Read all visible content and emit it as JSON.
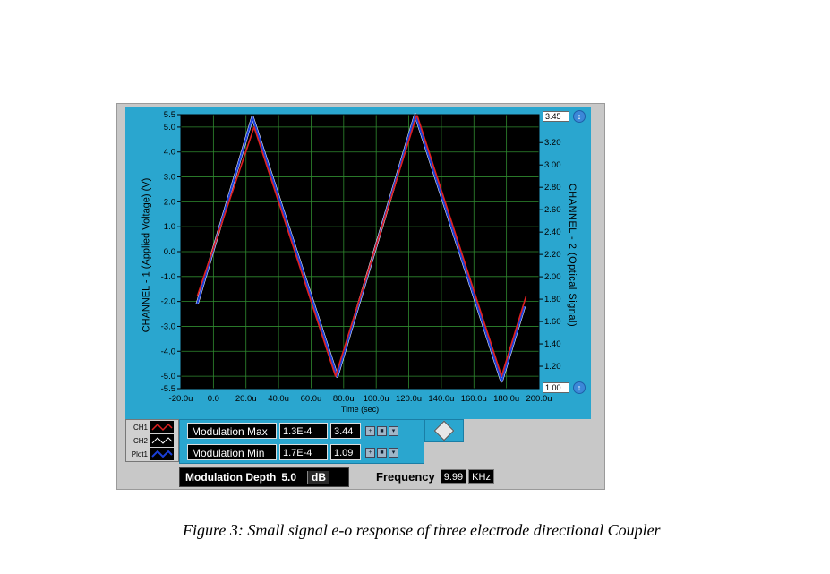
{
  "chart_data": {
    "type": "line",
    "xlabel": "Time (sec)",
    "ylabel": "CHANNEL - 1 (Applied Voltage) (V)",
    "y2label": "CHANNEL - 2 (Optical Signal)",
    "xlim": [
      -20,
      200
    ],
    "ylim": [
      -5.5,
      5.5
    ],
    "y2lim": [
      1.0,
      3.45
    ],
    "x_ticks": [
      -20,
      0,
      20,
      40,
      60,
      80,
      100,
      120,
      140,
      160,
      180,
      200
    ],
    "x_tick_labels": [
      "-20.0u",
      "0.0",
      "20.0u",
      "40.0u",
      "60.0u",
      "80.0u",
      "100.0u",
      "120.0u",
      "140.0u",
      "160.0u",
      "180.0u",
      "200.0u"
    ],
    "y_ticks": [
      5.5,
      5.0,
      4.0,
      3.0,
      2.0,
      1.0,
      0.0,
      -1.0,
      -2.0,
      -3.0,
      -4.0,
      -5.0,
      -5.5
    ],
    "y_tick_labels": [
      "5.5",
      "5.0",
      "4.0",
      "3.0",
      "2.0",
      "1.0",
      "0.0",
      "-1.0",
      "-2.0",
      "-3.0",
      "-4.0",
      "-5.0",
      "-5.5"
    ],
    "y2_ticks": [
      3.2,
      3.0,
      2.8,
      2.6,
      2.4,
      2.2,
      2.0,
      1.8,
      1.6,
      1.4,
      1.2
    ],
    "y2_tick_labels": [
      "3.20",
      "3.00",
      "2.80",
      "2.60",
      "2.40",
      "2.20",
      "2.00",
      "1.80",
      "1.60",
      "1.40",
      "1.20"
    ],
    "y2_max_label": "3.45",
    "y2_min_label": "1.00",
    "grid": true,
    "series": [
      {
        "name": "CH1",
        "color": "#e02020",
        "x": [
          -10,
          25,
          75,
          125,
          177,
          192
        ],
        "y": [
          -1.8,
          5.0,
          -5.0,
          5.5,
          -5.0,
          -1.8
        ]
      },
      {
        "name": "CH2",
        "color": "#ffffff",
        "x": [
          -10,
          24,
          76,
          124,
          177,
          191
        ],
        "y": [
          -2.1,
          5.4,
          -5.0,
          5.5,
          -5.2,
          -2.2
        ]
      },
      {
        "name": "Plot1",
        "color": "#1a3fd8",
        "x": [
          -10,
          24,
          76,
          124,
          177,
          191
        ],
        "y": [
          -2.1,
          5.4,
          -5.0,
          5.5,
          -5.2,
          -2.2
        ]
      }
    ]
  },
  "legend": {
    "items": [
      {
        "label": "CH1",
        "color": "#e02020"
      },
      {
        "label": "CH2",
        "color": "#ffffff"
      },
      {
        "label": "Plot1",
        "color": "#1a3fd8"
      }
    ]
  },
  "cursors": {
    "max_label": "Modulation Max",
    "max_x": "1.3E-4",
    "max_y": "3.44",
    "min_label": "Modulation Min",
    "min_x": "1.7E-4",
    "min_y": "1.09"
  },
  "depth": {
    "label": "Modulation Depth",
    "value": "5.0",
    "unit": "dB"
  },
  "frequency": {
    "label": "Frequency",
    "value": "9.99",
    "unit": "KHz"
  },
  "caption": "Figure 3:  Small signal e-o response of three electrode directional Coupler"
}
